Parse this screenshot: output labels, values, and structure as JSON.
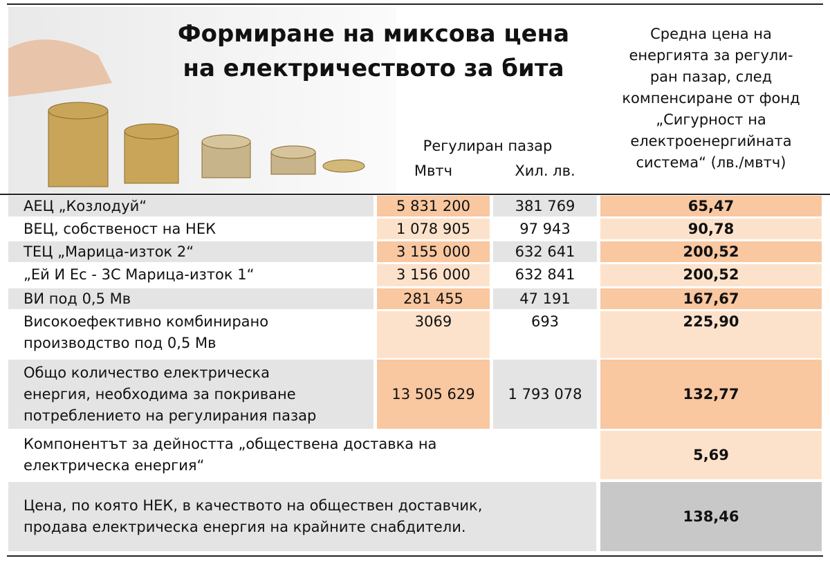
{
  "title": [
    "Формиране на миксова цена",
    "на електричеството за бита"
  ],
  "header": {
    "market": "Регулиран пазар",
    "col1": "Мвтч",
    "col2": "Хил. лв.",
    "price": [
      "Средна цена на",
      "енергията за регули-",
      "ран пазар, след",
      "компенсиране от фонд",
      "„Сигурност на",
      "електроенергийната",
      "система“ (лв./мвтч)"
    ]
  },
  "rows": [
    {
      "label": [
        "АЕЦ „Козлодуй“"
      ],
      "mwh": "5 831 200",
      "lv": "381 769",
      "price": "65,47"
    },
    {
      "label": [
        "ВЕЦ, собственост на НЕК"
      ],
      "mwh": "1 078 905",
      "lv": "97 943",
      "price": "90,78"
    },
    {
      "label": [
        "ТЕЦ „Марица-изток 2“"
      ],
      "mwh": "3 155 000",
      "lv": "632 641",
      "price": "200,52"
    },
    {
      "label": [
        "„Ей И Ес - 3С Марица-изток 1“"
      ],
      "mwh": "3 156 000",
      "lv": "632 841",
      "price": "200,52"
    },
    {
      "label": [
        "ВИ под 0,5 Мв"
      ],
      "mwh": "281 455",
      "lv": "47 191",
      "price": "167,67"
    },
    {
      "label": [
        "Високоефективно комбинирано",
        "производство под 0,5 Мв"
      ],
      "mwh": "3069",
      "lv": "693",
      "price": "225,90"
    },
    {
      "label": [
        "Общо количество електрическа",
        "енергия, необходима за покриване",
        "потреблението на регулирания пазар"
      ],
      "mwh": "13 505 629",
      "lv": "1 793 078",
      "price": "132,77"
    },
    {
      "label": [
        "Компонентът за дейността „обществена доставка на",
        "електрическа енергия“"
      ],
      "price": "5,69"
    },
    {
      "label": [
        "Цена, по която НЕК, в качеството на обществен доставчик,",
        "продава електрическа енергия на крайните снабдители."
      ],
      "price": "138,46"
    }
  ]
}
